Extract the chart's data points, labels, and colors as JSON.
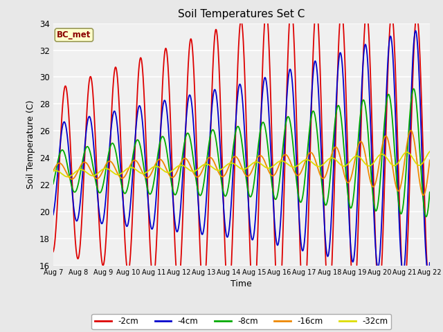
{
  "title": "Soil Temperatures Set C",
  "xlabel": "Time",
  "ylabel": "Soil Temperature (C)",
  "ylim": [
    16,
    34
  ],
  "annotation": "BC_met",
  "series_colors": {
    "-2cm": "#dd0000",
    "-4cm": "#0000cc",
    "-8cm": "#00aa00",
    "-16cm": "#ee8800",
    "-32cm": "#dddd00"
  },
  "bg_color": "#e8e8e8",
  "plot_bg": "#f0f0f0",
  "x_tick_labels": [
    "Aug 7",
    "Aug 8",
    "Aug 9",
    "Aug 10",
    "Aug 11",
    "Aug 12",
    "Aug 13",
    "Aug 14",
    "Aug 15",
    "Aug 16",
    "Aug 17",
    "Aug 18",
    "Aug 19",
    "Aug 20",
    "Aug 21",
    "Aug 22"
  ]
}
